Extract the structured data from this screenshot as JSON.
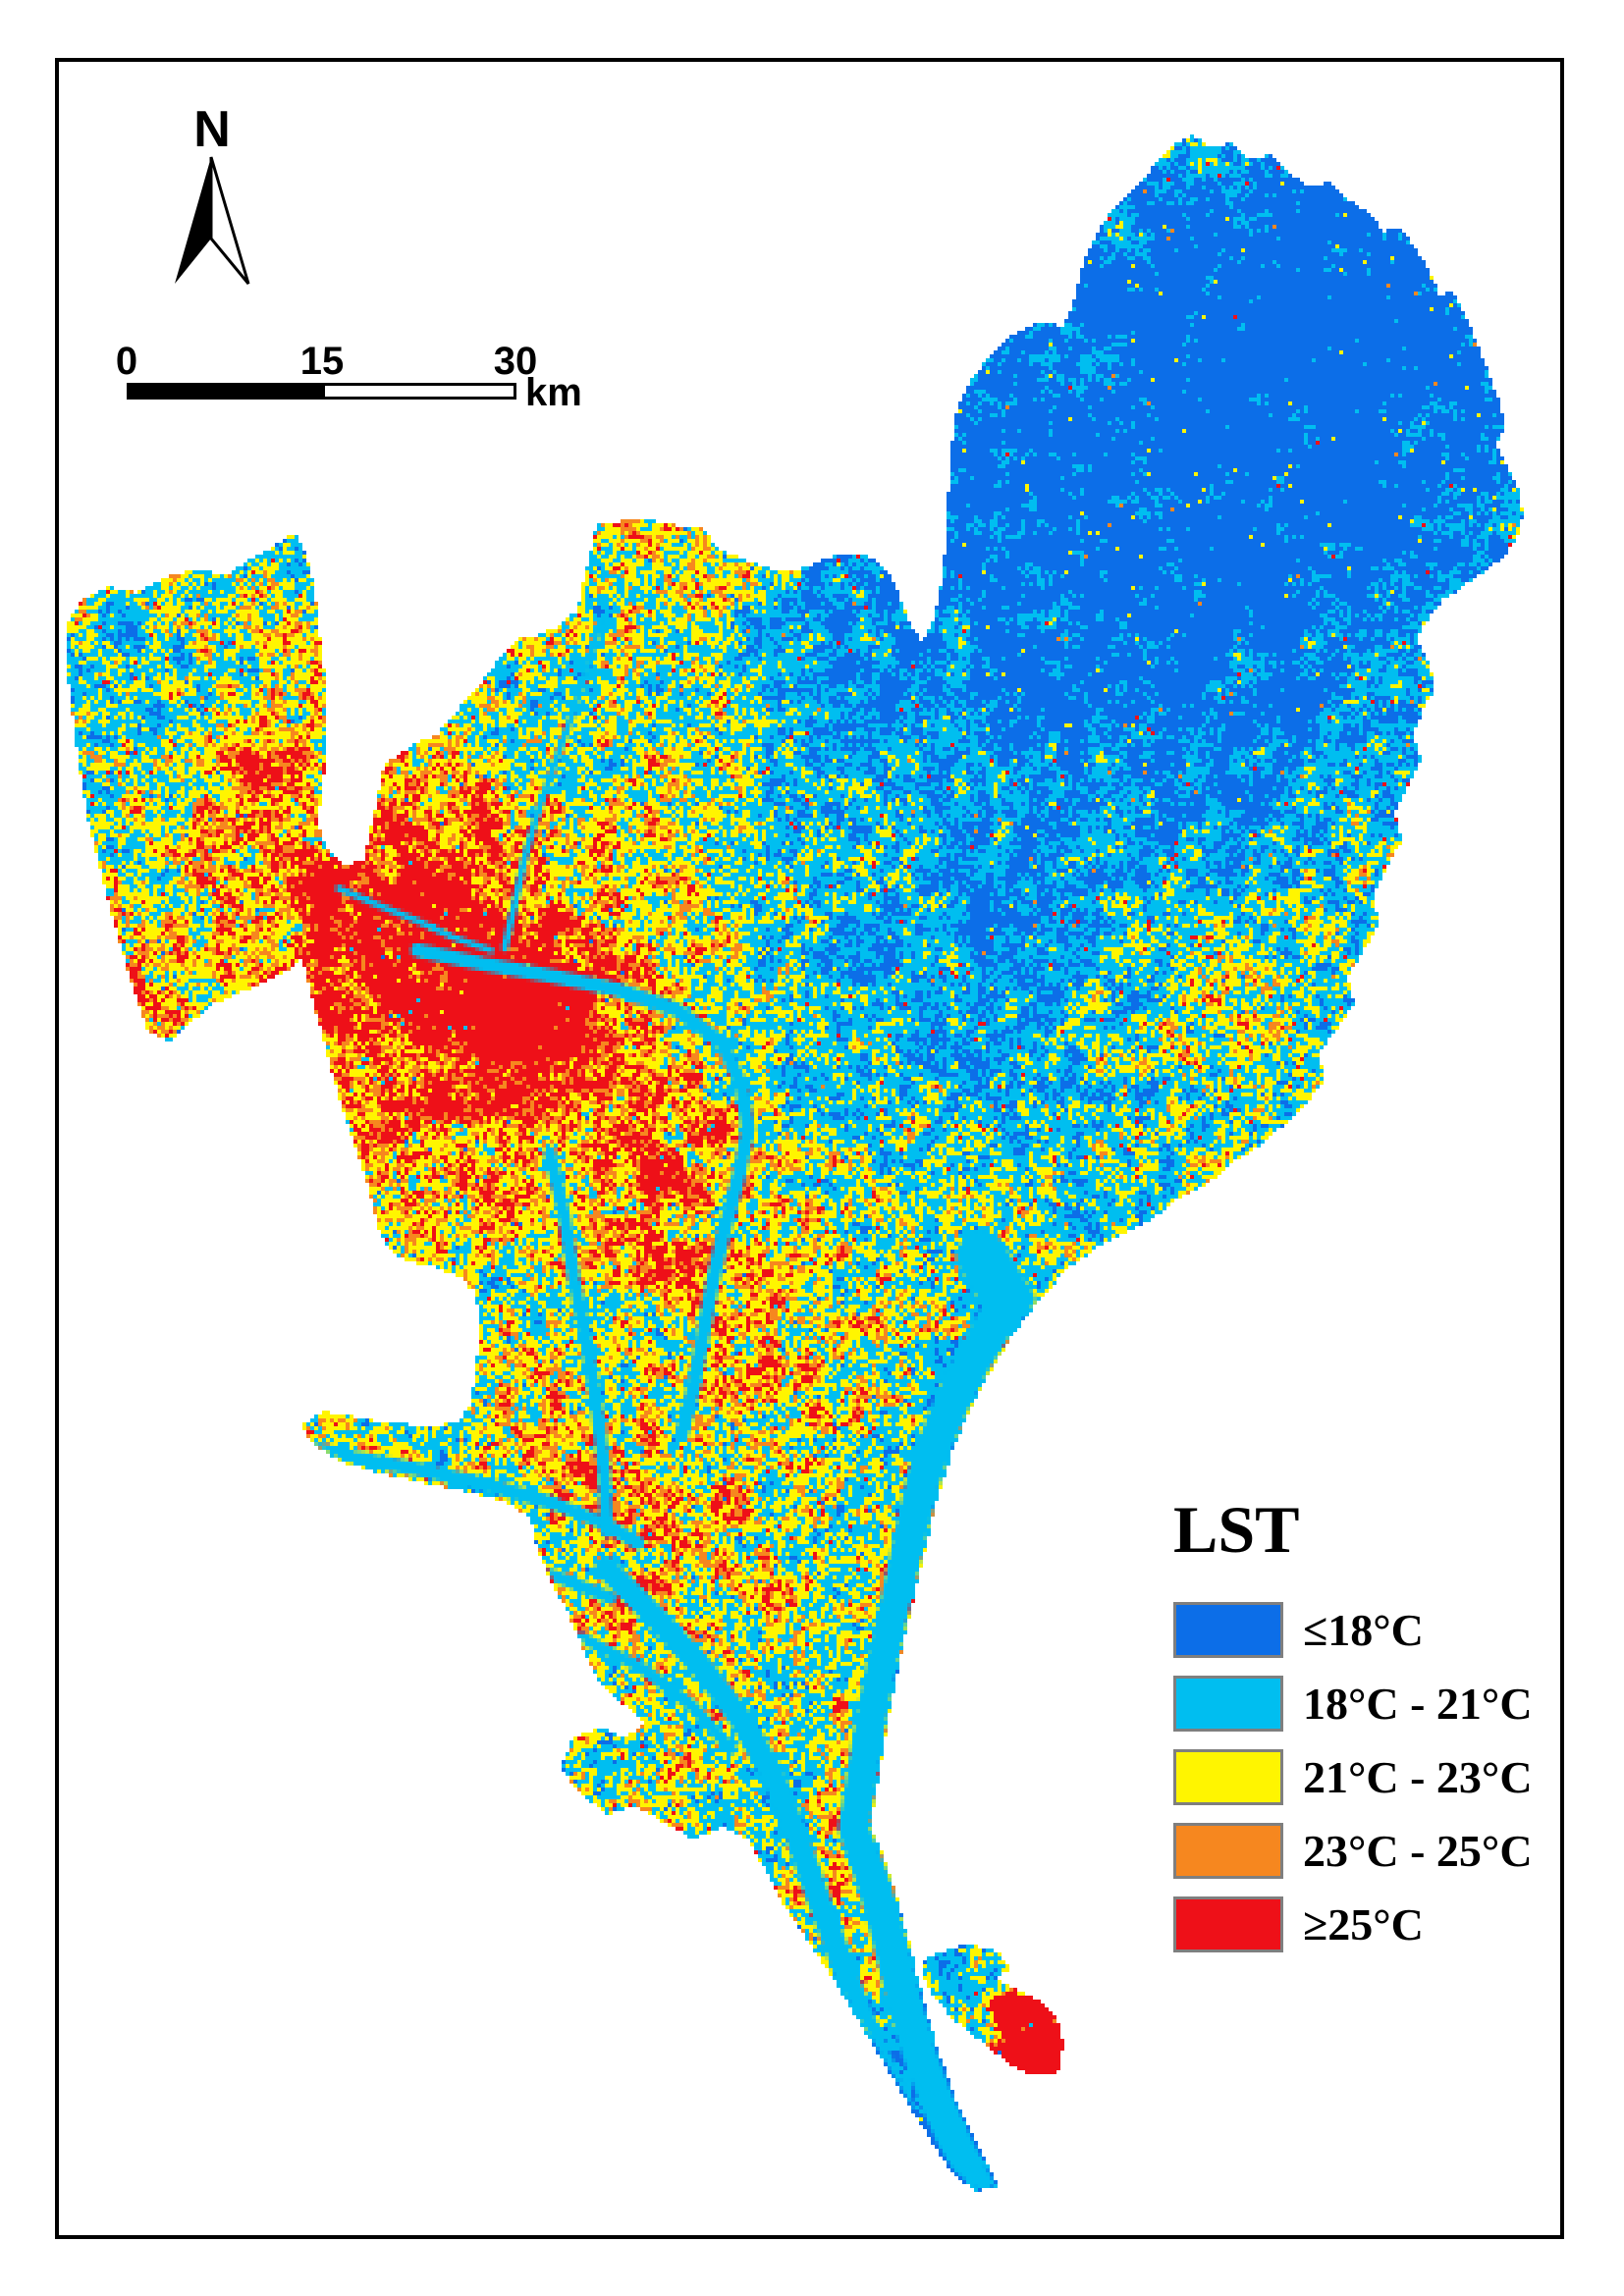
{
  "north_arrow": {
    "label": "N"
  },
  "scale_bar": {
    "ticks": [
      "0",
      "15",
      "30"
    ],
    "unit": "km"
  },
  "legend": {
    "title": "LST",
    "swatch_border": "#7f7f7f",
    "items": [
      {
        "label": "≤18°C",
        "color": "#0c6ee8"
      },
      {
        "label": "18°C - 21°C",
        "color": "#00bef0"
      },
      {
        "label": "21°C - 23°C",
        "color": "#fff500"
      },
      {
        "label": "23°C - 25°C",
        "color": "#f6871f"
      },
      {
        "label": "≥25°C",
        "color": "#ee1018"
      }
    ]
  },
  "frame_color": "#000000"
}
